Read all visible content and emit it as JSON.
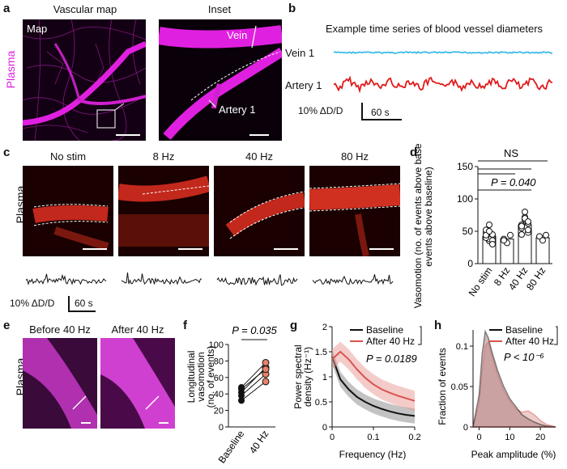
{
  "panels": {
    "a": {
      "label": "a",
      "title_map": "Vascular map",
      "title_inset": "Inset",
      "side_label": "Plasma",
      "map_tag": "Map",
      "vein_tag": "Vein",
      "artery_tag": "Artery 1"
    },
    "b": {
      "label": "b",
      "title": "Example time series of blood vessel diameters",
      "vein": "Vein 1",
      "artery": "Artery 1",
      "scale_y": "10% ΔD/D",
      "scale_x": "60 s"
    },
    "c": {
      "label": "c",
      "side_label": "Plasma",
      "conditions": [
        "No stim",
        "8 Hz",
        "40 Hz",
        "80 Hz"
      ],
      "scale_y": "10% ΔD/D",
      "scale_x": "60 s"
    },
    "d": {
      "label": "d",
      "sig_ns": "NS",
      "sig_p": "P = 0.040"
    },
    "e": {
      "label": "e",
      "side_label": "Plasma",
      "before": "Before 40 Hz",
      "after": "After 40 Hz"
    },
    "f": {
      "label": "f",
      "sig_p": "P = 0.035"
    },
    "g": {
      "label": "g",
      "sig_p": "P = 0.0189"
    },
    "h": {
      "label": "h",
      "sig_p": "P < 10⁻⁶"
    }
  },
  "colors": {
    "plasma_magenta": "#e020e0",
    "vein_cyan": "#29b6e6",
    "artery_red": "#e21a1a",
    "baseline_black": "#111111",
    "after_red": "#d9534f"
  },
  "chart_data": [
    {
      "id": "d",
      "type": "bar",
      "ylabel": "Vasomotion (no. of events above baseline)",
      "categories": [
        "No stim",
        "8 Hz",
        "40 Hz",
        "80 Hz"
      ],
      "values": [
        42,
        38,
        60,
        40
      ],
      "ylim": [
        0,
        150
      ],
      "yticks": [
        0,
        50,
        100,
        150
      ]
    },
    {
      "id": "f",
      "type": "scatter",
      "ylabel": "Longitudinal vasomotion (no. of events)",
      "categories": [
        "Baseline",
        "40 Hz"
      ],
      "ylim": [
        0,
        100
      ],
      "yticks": [
        0,
        20,
        40,
        60,
        80,
        100
      ],
      "pairs": [
        [
          32,
          55
        ],
        [
          38,
          64
        ],
        [
          42,
          72
        ],
        [
          46,
          70
        ],
        [
          48,
          78
        ]
      ]
    },
    {
      "id": "g",
      "type": "line",
      "xlabel": "Frequency (Hz)",
      "ylabel": "Power spectral density (Hz⁻¹)",
      "xlim": [
        0,
        0.2
      ],
      "ylim": [
        0,
        2
      ],
      "xticks": [
        0,
        0.1,
        0.2
      ],
      "yticks": [
        0,
        0.5,
        1,
        1.5,
        2
      ],
      "series": [
        {
          "name": "Baseline",
          "x": [
            0,
            0.02,
            0.04,
            0.06,
            0.08,
            0.1,
            0.12,
            0.14,
            0.16,
            0.18,
            0.2
          ],
          "y": [
            1.4,
            0.95,
            0.75,
            0.6,
            0.5,
            0.42,
            0.36,
            0.31,
            0.27,
            0.24,
            0.22
          ]
        },
        {
          "name": "After 40 Hz",
          "x": [
            0,
            0.02,
            0.04,
            0.06,
            0.08,
            0.1,
            0.12,
            0.14,
            0.16,
            0.18,
            0.2
          ],
          "y": [
            1.35,
            1.5,
            1.35,
            1.15,
            0.98,
            0.85,
            0.75,
            0.68,
            0.62,
            0.57,
            0.52
          ]
        }
      ],
      "legend": "top-right"
    },
    {
      "id": "h",
      "type": "area",
      "xlabel": "Peak amplitude (%)",
      "ylabel": "Fraction of events",
      "xlim": [
        -2,
        25
      ],
      "ylim": [
        0,
        0.12
      ],
      "xticks": [
        0,
        10,
        20
      ],
      "yticks": [
        0,
        0.05,
        0.1
      ],
      "series": [
        {
          "name": "Baseline",
          "x": [
            -2,
            0,
            1,
            2,
            3,
            4,
            6,
            8,
            10,
            12,
            14,
            16,
            18,
            20,
            22,
            25
          ],
          "y": [
            0,
            0.04,
            0.09,
            0.118,
            0.11,
            0.095,
            0.07,
            0.05,
            0.035,
            0.025,
            0.015,
            0.01,
            0.006,
            0.003,
            0.001,
            0
          ]
        },
        {
          "name": "After 40 Hz",
          "x": [
            -2,
            0,
            1,
            2,
            3,
            4,
            6,
            8,
            10,
            12,
            14,
            16,
            18,
            20,
            22,
            25
          ],
          "y": [
            0,
            0.03,
            0.07,
            0.1,
            0.105,
            0.09,
            0.065,
            0.045,
            0.032,
            0.022,
            0.018,
            0.02,
            0.015,
            0.008,
            0.003,
            0
          ]
        }
      ],
      "legend": "top-right"
    }
  ]
}
